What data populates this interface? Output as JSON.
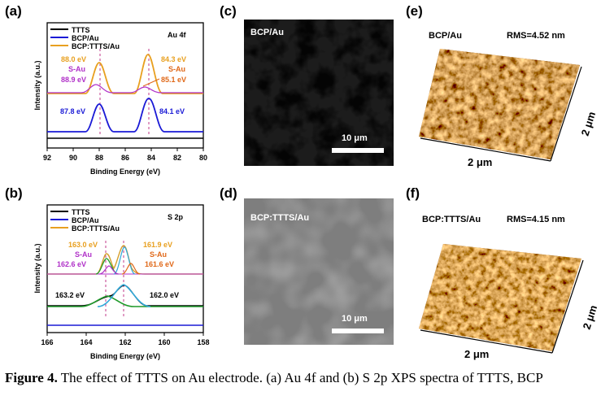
{
  "panels": {
    "a": {
      "letter": "(a)",
      "legend": [
        "TTTS",
        "BCP/Au",
        "BCP:TTTS/Au"
      ],
      "tag": "Au 4f",
      "ann": {
        "l_top": "88.0 eV",
        "l_mid": "S-Au",
        "l_bot": "88.9 eV",
        "r_top": "84.3 eV",
        "r_mid": "S-Au",
        "r_bot": "85.1 eV",
        "blue_l": "87.8 eV",
        "blue_r": "84.1 eV"
      },
      "xticks": [
        "92",
        "90",
        "88",
        "86",
        "84",
        "82",
        "80"
      ],
      "xlabel": "Binding Energy (eV)",
      "ylabel": "Intensity (a.u.)"
    },
    "b": {
      "letter": "(b)",
      "legend": [
        "TTTS",
        "BCP/Au",
        "BCP:TTTS/Au"
      ],
      "tag": "S 2p",
      "ann": {
        "l_top": "163.0 eV",
        "l_mid": "S-Au",
        "l_bot": "162.6 eV",
        "r_top": "161.9 eV",
        "r_mid": "S-Au",
        "r_bot": "161.6 eV",
        "black": "163.2 eV",
        "cyan": "162.0 eV"
      },
      "xticks": [
        "166",
        "164",
        "162",
        "160",
        "158"
      ],
      "xlabel": "Binding Energy (eV)",
      "ylabel": "Intensity (a.u.)"
    },
    "c": {
      "letter": "(c)",
      "label": "BCP/Au",
      "scale": "10 μm"
    },
    "d": {
      "letter": "(d)",
      "label": "BCP:TTTS/Au",
      "scale": "10 μm"
    },
    "e": {
      "letter": "(e)",
      "label": "BCP/Au",
      "rms": "RMS=4.52 nm",
      "axis_x": "2 μm",
      "axis_y": "2 μm"
    },
    "f": {
      "letter": "(f)",
      "label": "BCP:TTTS/Au",
      "rms": "RMS=4.15 nm",
      "axis_x": "2 μm",
      "axis_y": "2 μm"
    }
  },
  "caption": {
    "bold": "Figure 4.",
    "text": " The effect of TTTS on Au electrode. (a) Au 4f and (b) S 2p XPS spectra of TTTS, BCP"
  },
  "colors": {
    "ttts": "#000000",
    "bcp": "#1a1ad6",
    "bcpttts": "#e8a020",
    "purple": "#b030c8",
    "green": "#1f9a2a",
    "cyan": "#30a8d8",
    "orange": "#e06818",
    "gold": "#d4a030"
  },
  "chart_data": [
    {
      "type": "line",
      "title": "Au 4f",
      "xlabel": "Binding Energy (eV)",
      "ylabel": "Intensity (a.u.)",
      "xlim": [
        92,
        80
      ],
      "x_reversed": true,
      "series": [
        {
          "name": "TTTS"
        },
        {
          "name": "BCP/Au",
          "peaks": [
            87.8,
            84.1
          ]
        },
        {
          "name": "BCP:TTTS/Au",
          "peaks": [
            88.0,
            84.3
          ]
        }
      ],
      "annotations": [
        "88.0 eV",
        "S-Au",
        "88.9 eV",
        "84.3 eV",
        "S-Au",
        "85.1 eV",
        "87.8 eV",
        "84.1 eV"
      ]
    },
    {
      "type": "line",
      "title": "S 2p",
      "xlabel": "Binding Energy (eV)",
      "ylabel": "Intensity (a.u.)",
      "xlim": [
        166,
        158
      ],
      "x_reversed": true,
      "series": [
        {
          "name": "TTTS"
        },
        {
          "name": "BCP/Au"
        },
        {
          "name": "BCP:TTTS/Au"
        }
      ],
      "annotations": [
        "163.0 eV",
        "S-Au",
        "162.6 eV",
        "161.9 eV",
        "S-Au",
        "161.6 eV",
        "163.2 eV",
        "162.0 eV"
      ]
    }
  ]
}
